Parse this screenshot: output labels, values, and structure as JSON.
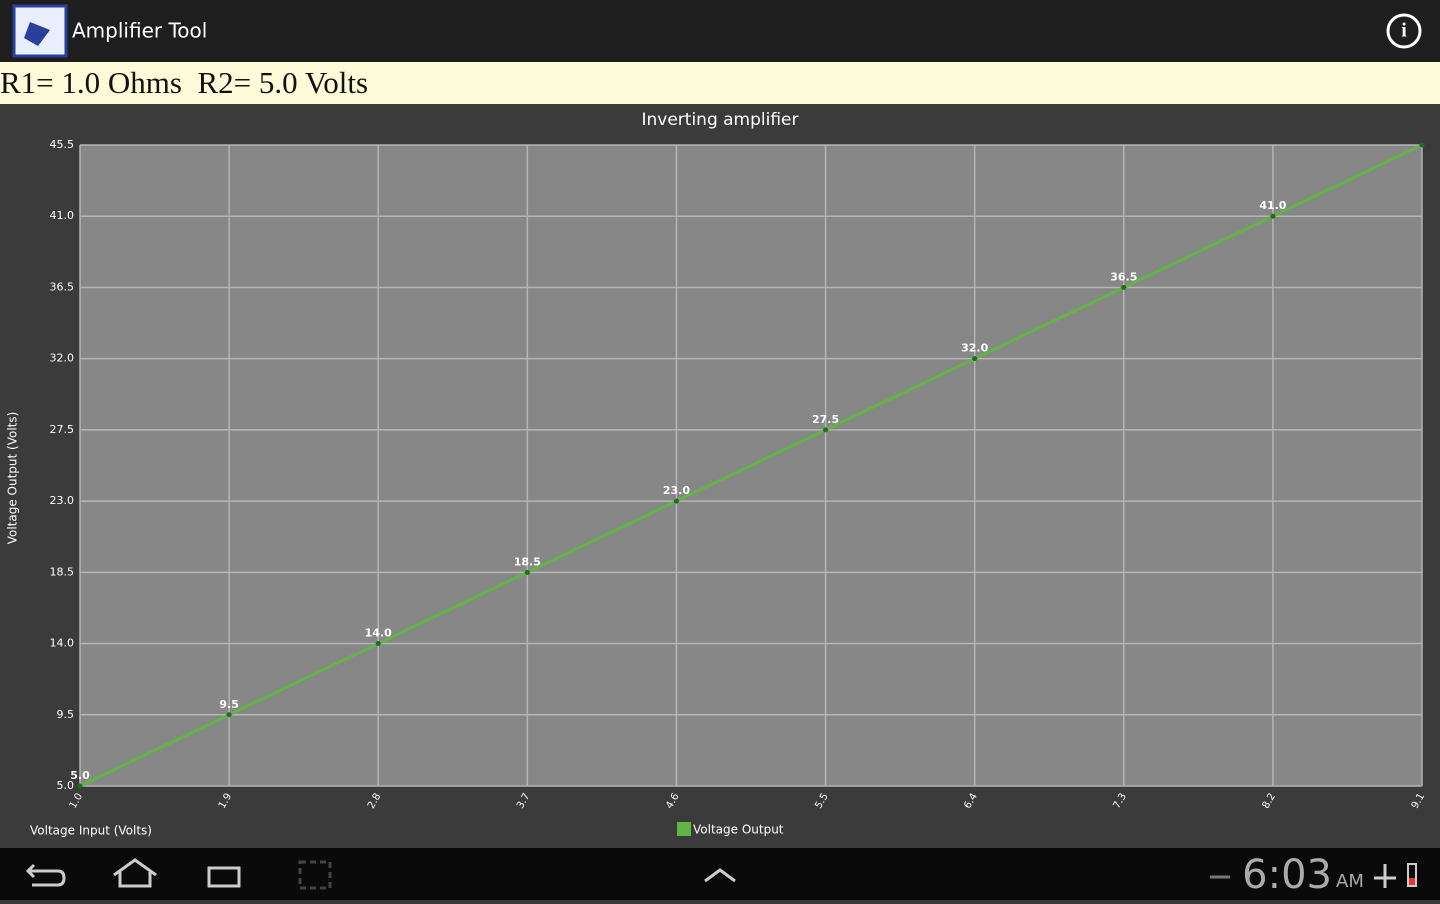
{
  "app_bar": {
    "title": "Amplifier Tool"
  },
  "info_bar": {
    "text": "R1= 1.0 Ohms  R2= 5.0 Volts"
  },
  "chart_data": {
    "type": "line",
    "title": "Inverting amplifier",
    "x_label": "Voltage Input (Volts)",
    "y_label": "Voltage Output (Volts)",
    "x": [
      1,
      1.9,
      2.8,
      3.7,
      4.6,
      5.5,
      6.4,
      7.3,
      8.2,
      9.1
    ],
    "series": [
      {
        "name": "Voltage Output",
        "color": "#62b544",
        "values": [
          5,
          9.5,
          14,
          18.5,
          23,
          27.5,
          32,
          36.5,
          41,
          45.5
        ],
        "value_labels": [
          "5.0",
          "9.5",
          "14.0",
          "18.5",
          "23.0",
          "27.5",
          "32.0",
          "36.5",
          "41.0",
          null
        ]
      }
    ],
    "xlim": [
      1,
      9.1
    ],
    "ylim": [
      5,
      45.5
    ],
    "xticks": [
      {
        "value": 1,
        "label": "1.0"
      },
      1.9,
      2.8,
      3.7,
      4.6,
      5.5,
      6.4,
      7.3,
      8.2,
      9.1
    ],
    "yticks": [
      {
        "value": 5,
        "label": "5.0"
      },
      9.5,
      {
        "value": 14,
        "label": "14.0"
      },
      18.5,
      {
        "value": 23,
        "label": "23.0"
      },
      27.5,
      {
        "value": 32,
        "label": "32.0"
      },
      36.5,
      {
        "value": 41,
        "label": "41.0"
      },
      45.5
    ],
    "grid": true
  },
  "status_bar": {
    "time": "6:03",
    "ampm": "AM"
  }
}
